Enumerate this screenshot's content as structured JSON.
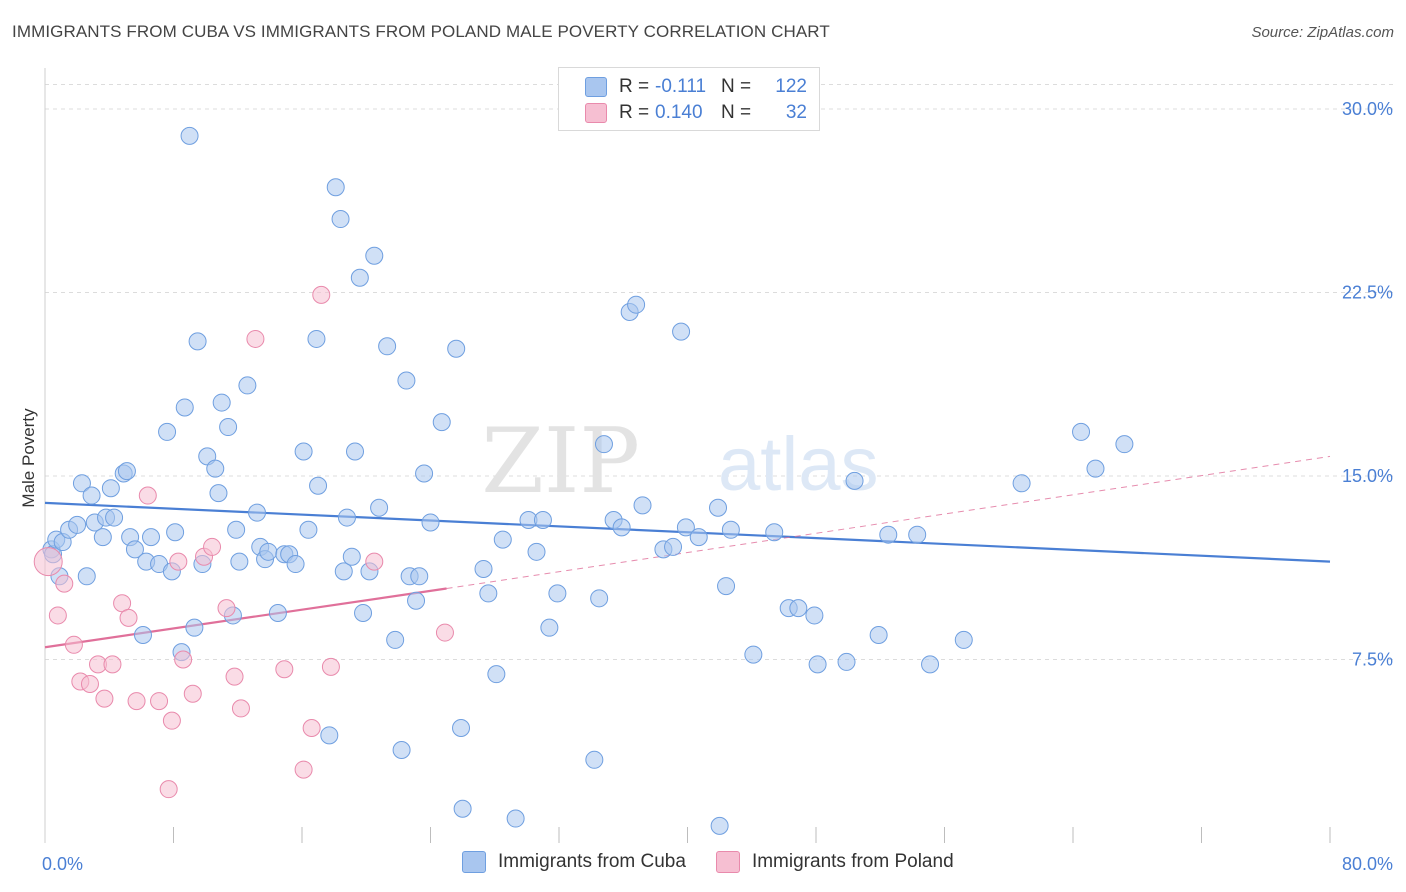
{
  "title": "IMMIGRANTS FROM CUBA VS IMMIGRANTS FROM POLAND MALE POVERTY CORRELATION CHART",
  "source": "Source: ZipAtlas.com",
  "watermark": {
    "zip": "ZIP",
    "atlas": "atlas"
  },
  "legend": {
    "rows": [
      {
        "r_label": "R =",
        "r_value": "-0.111",
        "n_label": "N =",
        "n_value": "122",
        "fill": "#a9c6ef",
        "stroke": "#6f9fe0"
      },
      {
        "r_label": "R =",
        "r_value": "0.140",
        "n_label": "N =",
        "n_value": "32",
        "fill": "#f6bfd2",
        "stroke": "#e98aac"
      }
    ]
  },
  "bottom_legend": [
    {
      "label": "Immigrants from Cuba",
      "fill": "#a9c6ef",
      "stroke": "#6f9fe0"
    },
    {
      "label": "Immigrants from Poland",
      "fill": "#f6bfd2",
      "stroke": "#e98aac"
    }
  ],
  "chart_data": {
    "type": "scatter",
    "title": "IMMIGRANTS FROM CUBA VS IMMIGRANTS FROM POLAND MALE POVERTY CORRELATION CHART",
    "xlabel": "",
    "ylabel": "Male Poverty",
    "xlim": [
      0,
      80
    ],
    "ylim": [
      0,
      32
    ],
    "x_tick_labels": [
      {
        "value": 0,
        "label": "0.0%"
      },
      {
        "value": 80,
        "label": "80.0%"
      }
    ],
    "y_tick_labels": [
      {
        "value": 7.5,
        "label": "7.5%"
      },
      {
        "value": 15,
        "label": "15.0%"
      },
      {
        "value": 22.5,
        "label": "22.5%"
      },
      {
        "value": 30,
        "label": "30.0%"
      }
    ],
    "x_minor_ticks": [
      8,
      16,
      24,
      32,
      40,
      48,
      56,
      64,
      72,
      80
    ],
    "colors": {
      "cuba": "#4a7fd4",
      "poland": "#e0709a",
      "axis_text": "#4a7fd4"
    },
    "series": [
      {
        "name": "Immigrants from Cuba",
        "r": -0.111,
        "n": 122,
        "trend": {
          "x0": 0,
          "y0": 13.9,
          "x1": 80,
          "y1": 11.5
        },
        "points": [
          [
            0.4,
            12.0
          ],
          [
            0.5,
            11.8
          ],
          [
            0.7,
            12.4
          ],
          [
            0.9,
            10.9
          ],
          [
            1.1,
            12.3
          ],
          [
            1.5,
            12.8
          ],
          [
            2.0,
            13.0
          ],
          [
            2.3,
            14.7
          ],
          [
            2.6,
            10.9
          ],
          [
            2.9,
            14.2
          ],
          [
            3.1,
            13.1
          ],
          [
            3.6,
            12.5
          ],
          [
            3.8,
            13.3
          ],
          [
            4.1,
            14.5
          ],
          [
            4.3,
            13.3
          ],
          [
            4.9,
            15.1
          ],
          [
            5.1,
            15.2
          ],
          [
            5.3,
            12.5
          ],
          [
            5.6,
            12.0
          ],
          [
            6.1,
            8.5
          ],
          [
            6.3,
            11.5
          ],
          [
            6.6,
            12.5
          ],
          [
            7.1,
            11.4
          ],
          [
            7.6,
            16.8
          ],
          [
            7.9,
            11.1
          ],
          [
            8.1,
            12.7
          ],
          [
            8.5,
            7.8
          ],
          [
            8.7,
            17.8
          ],
          [
            9.0,
            28.9
          ],
          [
            9.3,
            8.8
          ],
          [
            9.5,
            20.5
          ],
          [
            9.8,
            11.4
          ],
          [
            10.1,
            15.8
          ],
          [
            10.6,
            15.3
          ],
          [
            10.8,
            14.3
          ],
          [
            11.0,
            18.0
          ],
          [
            11.4,
            17.0
          ],
          [
            11.7,
            9.3
          ],
          [
            11.9,
            12.8
          ],
          [
            12.1,
            11.5
          ],
          [
            12.6,
            18.7
          ],
          [
            13.2,
            13.5
          ],
          [
            13.4,
            12.1
          ],
          [
            13.7,
            11.6
          ],
          [
            13.9,
            11.9
          ],
          [
            14.5,
            9.4
          ],
          [
            14.9,
            11.8
          ],
          [
            15.2,
            11.8
          ],
          [
            15.6,
            11.4
          ],
          [
            16.1,
            16.0
          ],
          [
            16.4,
            12.8
          ],
          [
            16.9,
            20.6
          ],
          [
            17.0,
            14.6
          ],
          [
            17.7,
            4.4
          ],
          [
            18.1,
            26.8
          ],
          [
            18.4,
            25.5
          ],
          [
            18.6,
            11.1
          ],
          [
            18.8,
            13.3
          ],
          [
            19.1,
            11.7
          ],
          [
            19.3,
            16.0
          ],
          [
            19.6,
            23.1
          ],
          [
            19.8,
            9.4
          ],
          [
            20.2,
            11.1
          ],
          [
            20.5,
            24.0
          ],
          [
            20.8,
            13.7
          ],
          [
            21.3,
            20.3
          ],
          [
            21.8,
            8.3
          ],
          [
            22.2,
            3.8
          ],
          [
            22.5,
            18.9
          ],
          [
            22.7,
            10.9
          ],
          [
            23.1,
            9.9
          ],
          [
            23.3,
            10.9
          ],
          [
            23.6,
            15.1
          ],
          [
            24.0,
            13.1
          ],
          [
            24.7,
            17.2
          ],
          [
            25.6,
            20.2
          ],
          [
            25.9,
            4.7
          ],
          [
            27.3,
            11.2
          ],
          [
            27.6,
            10.2
          ],
          [
            28.1,
            6.9
          ],
          [
            28.5,
            12.4
          ],
          [
            29.3,
            1.0
          ],
          [
            30.1,
            13.2
          ],
          [
            30.6,
            11.9
          ],
          [
            31.0,
            13.2
          ],
          [
            31.4,
            8.8
          ],
          [
            31.9,
            10.2
          ],
          [
            34.2,
            3.4
          ],
          [
            34.5,
            10.0
          ],
          [
            34.8,
            16.3
          ],
          [
            35.4,
            13.2
          ],
          [
            35.9,
            12.9
          ],
          [
            36.4,
            21.7
          ],
          [
            36.8,
            22.0
          ],
          [
            37.2,
            13.8
          ],
          [
            38.5,
            12.0
          ],
          [
            39.1,
            12.1
          ],
          [
            39.6,
            20.9
          ],
          [
            39.9,
            12.9
          ],
          [
            40.7,
            12.5
          ],
          [
            41.9,
            13.7
          ],
          [
            42.4,
            10.5
          ],
          [
            42.7,
            12.8
          ],
          [
            44.1,
            7.7
          ],
          [
            45.4,
            12.7
          ],
          [
            46.3,
            9.6
          ],
          [
            46.9,
            9.6
          ],
          [
            47.9,
            9.3
          ],
          [
            48.1,
            7.3
          ],
          [
            49.9,
            7.4
          ],
          [
            50.4,
            14.8
          ],
          [
            51.9,
            8.5
          ],
          [
            52.5,
            12.6
          ],
          [
            54.3,
            12.6
          ],
          [
            55.1,
            7.3
          ],
          [
            57.2,
            8.3
          ],
          [
            60.8,
            14.7
          ],
          [
            64.5,
            16.8
          ],
          [
            65.4,
            15.3
          ],
          [
            67.2,
            16.3
          ],
          [
            42.0,
            0.7
          ],
          [
            26.0,
            1.4
          ]
        ]
      },
      {
        "name": "Immigrants from Poland",
        "r": 0.14,
        "n": 32,
        "trend": {
          "x0": 0,
          "y0": 8.0,
          "x1": 25,
          "y1": 10.4
        },
        "trend_extended": {
          "x0": 25,
          "y0": 10.4,
          "x1": 80,
          "y1": 15.8
        },
        "points": [
          [
            0.2,
            11.5
          ],
          [
            0.8,
            9.3
          ],
          [
            1.2,
            10.6
          ],
          [
            1.8,
            8.1
          ],
          [
            2.2,
            6.6
          ],
          [
            2.8,
            6.5
          ],
          [
            3.3,
            7.3
          ],
          [
            3.7,
            5.9
          ],
          [
            4.2,
            7.3
          ],
          [
            4.8,
            9.8
          ],
          [
            5.2,
            9.2
          ],
          [
            5.7,
            5.8
          ],
          [
            6.4,
            14.2
          ],
          [
            7.1,
            5.8
          ],
          [
            7.7,
            2.2
          ],
          [
            7.9,
            5.0
          ],
          [
            8.3,
            11.5
          ],
          [
            8.6,
            7.5
          ],
          [
            9.2,
            6.1
          ],
          [
            9.9,
            11.7
          ],
          [
            10.4,
            12.1
          ],
          [
            11.3,
            9.6
          ],
          [
            11.8,
            6.8
          ],
          [
            12.2,
            5.5
          ],
          [
            13.1,
            20.6
          ],
          [
            14.9,
            7.1
          ],
          [
            16.1,
            3.0
          ],
          [
            16.6,
            4.7
          ],
          [
            17.2,
            22.4
          ],
          [
            17.8,
            7.2
          ],
          [
            20.5,
            11.5
          ],
          [
            24.9,
            8.6
          ]
        ]
      }
    ]
  }
}
